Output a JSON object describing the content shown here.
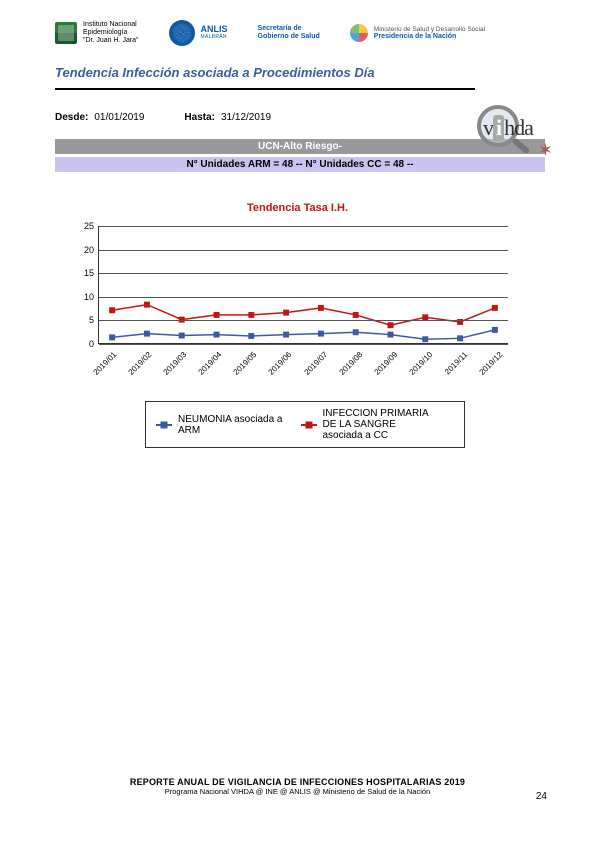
{
  "logos": {
    "ine": {
      "line1": "Instituto Nacional",
      "line2": "Epidemiología",
      "line3": "\"Dr. Juan H. Jara\""
    },
    "anlis": {
      "name": "ANLIS",
      "sub": "MALBRÁN"
    },
    "secretaria": {
      "line1": "Secretaría de",
      "line2": "Gobierno de Salud"
    },
    "presidencia": {
      "line1": "Ministerio de Salud y Desarrollo Social",
      "line2": "Presidencia de la Nación"
    }
  },
  "title": "Tendencia Infección asociada a Procedimientos Día",
  "vihda": "vihda",
  "dates": {
    "desde_label": "Desde:",
    "desde": "01/01/2019",
    "hasta_label": "Hasta:",
    "hasta": "31/12/2019"
  },
  "bar_grey": "UCN-Alto Riesgo-",
  "bar_lilac": "N° Unidades ARM = 48 --  N° Unidades CC = 48 --",
  "chart": {
    "title": "Tendencia Tasa I.H.",
    "type": "line",
    "x_categories": [
      "2019/01",
      "2019/02",
      "2019/03",
      "2019/04",
      "2019/05",
      "2019/06",
      "2019/07",
      "2019/08",
      "2019/09",
      "2019/10",
      "2019/11",
      "2019/12"
    ],
    "y_ticks": [
      0,
      5,
      10,
      15,
      20,
      25
    ],
    "ylim": [
      0,
      25
    ],
    "series": [
      {
        "name": "NEUMONIA asociada a ARM",
        "color": "#3b5ba5",
        "values": [
          1.2,
          2.0,
          1.6,
          1.8,
          1.5,
          1.8,
          2.0,
          2.3,
          1.8,
          0.8,
          1.0,
          2.8
        ]
      },
      {
        "name": "INFECCION PRIMARIA DE LA SANGRE asociada a CC",
        "color": "#c21515",
        "values": [
          7.0,
          8.2,
          5.0,
          6.0,
          6.0,
          6.5,
          7.5,
          6.0,
          3.8,
          5.5,
          4.5,
          7.5
        ]
      }
    ],
    "legend": [
      "NEUMONIA asociada a ARM",
      "INFECCION PRIMARIA DE LA SANGRE asociada a CC"
    ],
    "grid_color": "#555555",
    "background_color": "#ffffff",
    "marker": "square",
    "marker_size": 6,
    "line_width": 1.5,
    "axis_fontsize": 9
  },
  "footer": {
    "line1": "REPORTE ANUAL DE VIGILANCIA DE INFECCIONES HOSPITALARIAS 2019",
    "line2": "Programa Nacional VIHDA @ INE @ ANLIS @ Ministerio de Salud de la Nación"
  },
  "page_number": "24"
}
